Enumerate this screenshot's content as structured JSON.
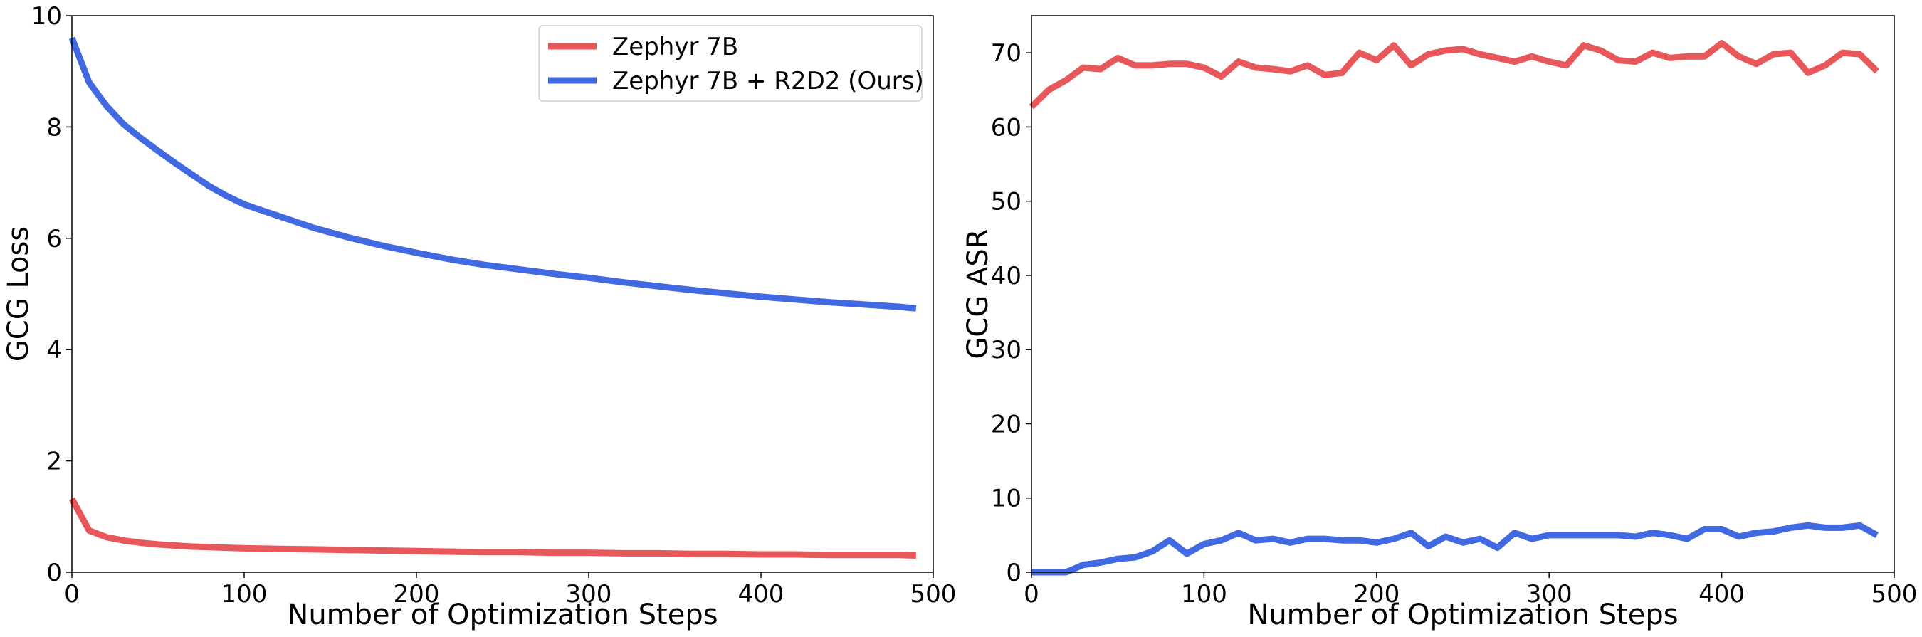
{
  "colors": {
    "zephyr": "#e8575a",
    "r2d2": "#4169e1",
    "axis": "#000000",
    "legend_border": "#d0d0d0"
  },
  "chart_data": [
    {
      "type": "line",
      "title": "",
      "xlabel": "Number of Optimization Steps",
      "ylabel": "GCG Loss",
      "xlim": [
        0,
        500
      ],
      "ylim": [
        0,
        10
      ],
      "xticks": [
        0,
        100,
        200,
        300,
        400,
        500
      ],
      "yticks": [
        0,
        2,
        4,
        6,
        8,
        10
      ],
      "grid": false,
      "legend": "top-right",
      "series": [
        {
          "name": "Zephyr 7B",
          "color": "#e8575a",
          "x": [
            0,
            10,
            20,
            30,
            40,
            50,
            60,
            70,
            80,
            90,
            100,
            120,
            140,
            160,
            180,
            200,
            220,
            240,
            260,
            280,
            300,
            320,
            340,
            360,
            380,
            400,
            420,
            440,
            460,
            480,
            490
          ],
          "y": [
            1.32,
            0.75,
            0.63,
            0.57,
            0.53,
            0.5,
            0.48,
            0.46,
            0.45,
            0.44,
            0.43,
            0.42,
            0.41,
            0.4,
            0.39,
            0.38,
            0.37,
            0.36,
            0.36,
            0.35,
            0.35,
            0.34,
            0.34,
            0.33,
            0.33,
            0.32,
            0.32,
            0.31,
            0.31,
            0.31,
            0.3
          ]
        },
        {
          "name": "Zephyr 7B + R2D2 (Ours)",
          "color": "#4169e1",
          "x": [
            0,
            10,
            20,
            30,
            40,
            50,
            60,
            70,
            80,
            90,
            100,
            120,
            140,
            160,
            180,
            200,
            220,
            240,
            260,
            280,
            300,
            320,
            340,
            360,
            380,
            400,
            420,
            440,
            460,
            480,
            490
          ],
          "y": [
            9.6,
            8.8,
            8.38,
            8.05,
            7.8,
            7.57,
            7.35,
            7.14,
            6.93,
            6.76,
            6.61,
            6.4,
            6.19,
            6.02,
            5.87,
            5.74,
            5.62,
            5.52,
            5.44,
            5.36,
            5.29,
            5.21,
            5.14,
            5.07,
            5.01,
            4.95,
            4.9,
            4.85,
            4.81,
            4.77,
            4.74
          ]
        }
      ]
    },
    {
      "type": "line",
      "title": "",
      "xlabel": "Number of Optimization Steps",
      "ylabel": "GCG ASR",
      "xlim": [
        0,
        500
      ],
      "ylim": [
        0,
        75
      ],
      "xticks": [
        0,
        100,
        200,
        300,
        400,
        500
      ],
      "yticks": [
        0,
        10,
        20,
        30,
        40,
        50,
        60,
        70
      ],
      "grid": false,
      "series": [
        {
          "name": "Zephyr 7B",
          "color": "#e8575a",
          "x": [
            0,
            10,
            20,
            30,
            40,
            50,
            60,
            70,
            80,
            90,
            100,
            110,
            120,
            130,
            140,
            150,
            160,
            170,
            180,
            190,
            200,
            210,
            220,
            230,
            240,
            250,
            260,
            270,
            280,
            290,
            300,
            310,
            320,
            330,
            340,
            350,
            360,
            370,
            380,
            390,
            400,
            410,
            420,
            430,
            440,
            450,
            460,
            470,
            480,
            490
          ],
          "y": [
            62.7,
            65.0,
            66.3,
            68.0,
            67.8,
            69.3,
            68.3,
            68.3,
            68.5,
            68.5,
            68.0,
            66.8,
            68.8,
            68.0,
            67.8,
            67.5,
            68.3,
            67.0,
            67.3,
            70.0,
            69.0,
            71.0,
            68.3,
            69.8,
            70.3,
            70.5,
            69.8,
            69.3,
            68.8,
            69.5,
            68.8,
            68.3,
            71.0,
            70.3,
            69.0,
            68.8,
            70.0,
            69.3,
            69.5,
            69.5,
            71.3,
            69.5,
            68.5,
            69.8,
            70.0,
            67.3,
            68.3,
            70.0,
            69.8,
            67.5
          ]
        },
        {
          "name": "Zephyr 7B + R2D2 (Ours)",
          "color": "#4169e1",
          "x": [
            0,
            10,
            20,
            30,
            40,
            50,
            60,
            70,
            80,
            90,
            100,
            110,
            120,
            130,
            140,
            150,
            160,
            170,
            180,
            190,
            200,
            210,
            220,
            230,
            240,
            250,
            260,
            270,
            280,
            290,
            300,
            310,
            320,
            330,
            340,
            350,
            360,
            370,
            380,
            390,
            400,
            410,
            420,
            430,
            440,
            450,
            460,
            470,
            480,
            490
          ],
          "y": [
            0.0,
            0.0,
            0.0,
            1.0,
            1.3,
            1.8,
            2.0,
            2.8,
            4.3,
            2.5,
            3.8,
            4.3,
            5.3,
            4.3,
            4.5,
            4.0,
            4.5,
            4.5,
            4.3,
            4.3,
            4.0,
            4.5,
            5.3,
            3.5,
            4.8,
            4.0,
            4.5,
            3.3,
            5.3,
            4.5,
            5.0,
            5.0,
            5.0,
            5.0,
            5.0,
            4.8,
            5.3,
            5.0,
            4.5,
            5.8,
            5.8,
            4.8,
            5.3,
            5.5,
            6.0,
            6.3,
            6.0,
            6.0,
            6.3,
            5.0
          ]
        }
      ]
    }
  ]
}
